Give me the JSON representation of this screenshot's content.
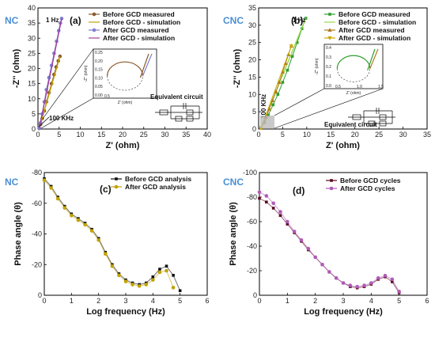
{
  "chart_data": [
    {
      "type": "scatter",
      "panel": "(a)",
      "tag": "NC",
      "xlabel": "Z' (ohm)",
      "ylabel": "-Z'' (ohm)",
      "xlim": [
        0,
        40
      ],
      "ylim": [
        0,
        40
      ],
      "xticks": [
        0,
        5,
        10,
        15,
        20,
        25,
        30,
        35,
        40
      ],
      "yticks": [
        0,
        5,
        10,
        15,
        20,
        25,
        30,
        35,
        40
      ],
      "legend_position": "top-right",
      "annotations": [
        "1 Hz",
        "100 KHz"
      ],
      "inset": {
        "xlabel": "Z' (ohm)",
        "ylabel": "-Z'' (ohm)",
        "xtick": "0.5",
        "yticks": [
          "0.25",
          "0.20",
          "0.15",
          "0.10",
          "0.05",
          "0.00"
        ]
      },
      "circuit_label": "Equivalent circuit",
      "series": [
        {
          "name": "Before GCD measured",
          "color": "#8b5a2b",
          "marker": "circle",
          "x": [
            0.3,
            0.6,
            1.0,
            1.5,
            2.0,
            2.6,
            3.2,
            3.8,
            4.3,
            4.8,
            5.2
          ],
          "y": [
            0.2,
            1.5,
            3.5,
            6.0,
            9.0,
            12.0,
            15.0,
            18.0,
            20.5,
            22.5,
            24.0
          ]
        },
        {
          "name": "Before GCD - simulation",
          "color": "#c2a300",
          "marker": "line",
          "x": [
            0.3,
            5.2
          ],
          "y": [
            0.2,
            24.0
          ]
        },
        {
          "name": "After GCD measured",
          "color": "#7f7fd0",
          "marker": "circle",
          "x": [
            0.3,
            0.6,
            1.0,
            1.5,
            2.0,
            2.6,
            3.2,
            3.8,
            4.4,
            4.9,
            5.3,
            5.6
          ],
          "y": [
            0.3,
            2.0,
            5.0,
            9.0,
            13.0,
            17.0,
            21.0,
            25.0,
            29.0,
            32.5,
            35.0,
            36.5
          ]
        },
        {
          "name": "After GCD - simulation",
          "color": "#a040a0",
          "marker": "line",
          "x": [
            0.3,
            5.6
          ],
          "y": [
            0.3,
            36.5
          ]
        }
      ]
    },
    {
      "type": "scatter",
      "panel": "(b)",
      "tag": "CNC",
      "xlabel": "Z' (ohm)",
      "ylabel": "-Z'' (ohm)",
      "xlim": [
        0,
        35
      ],
      "ylim": [
        0,
        35
      ],
      "xticks": [
        0,
        5,
        10,
        15,
        20,
        25,
        30,
        35
      ],
      "yticks": [
        0,
        5,
        10,
        15,
        20,
        25,
        30,
        35
      ],
      "legend_position": "top-right",
      "annotations": [
        "1 Hz",
        "100 KHz"
      ],
      "inset": {
        "xlabel": "Z' (ohm)",
        "ylabel": "-Z'' (ohm)",
        "xticks": [
          "0.5",
          "1.0",
          "1.5"
        ],
        "yticks": [
          "0.4",
          "0.3",
          "0.2",
          "0.1",
          "0.0"
        ]
      },
      "circuit_label": "Equivalent circuit",
      "series": [
        {
          "name": "Before GCD measured",
          "color": "#2e9e2e",
          "marker": "square",
          "x": [
            0.5,
            1.2,
            2.0,
            3.0,
            4.0,
            5.0,
            6.0,
            7.0,
            8.0,
            9.0,
            9.8
          ],
          "y": [
            0.3,
            2.0,
            4.0,
            7.0,
            10.0,
            13.5,
            17.0,
            21.0,
            25.0,
            29.0,
            32.0
          ]
        },
        {
          "name": "Before GCD - simulation",
          "color": "#9ad84a",
          "marker": "line",
          "x": [
            0.5,
            9.8
          ],
          "y": [
            0.3,
            32.0
          ]
        },
        {
          "name": "After GCD measured",
          "color": "#b07a20",
          "marker": "triangle-up",
          "x": [
            0.5,
            1.0,
            1.6,
            2.2,
            2.9,
            3.6,
            4.3,
            5.0,
            5.6,
            6.2,
            6.8
          ],
          "y": [
            0.3,
            1.8,
            3.5,
            5.8,
            8.2,
            10.8,
            13.5,
            16.5,
            19.0,
            21.5,
            24.0
          ]
        },
        {
          "name": "After GCD - simulation",
          "color": "#c9a800",
          "marker": "triangle-down",
          "x": [
            0.5,
            6.8
          ],
          "y": [
            0.3,
            24.0
          ]
        }
      ]
    },
    {
      "type": "scatter",
      "panel": "(c)",
      "tag": "NC",
      "xlabel": "Log frequency (Hz)",
      "ylabel": "Phase angle (θ)",
      "xlim": [
        0,
        6
      ],
      "ylim": [
        0,
        -80
      ],
      "xticks": [
        0,
        1,
        2,
        3,
        4,
        5,
        6
      ],
      "yticks": [
        0,
        -20,
        -40,
        -60,
        -80
      ],
      "legend_position": "top-right",
      "series": [
        {
          "name": "Before GCD analysis",
          "color": "#111111",
          "marker": "square",
          "x": [
            0,
            0.25,
            0.5,
            0.75,
            1.0,
            1.25,
            1.5,
            1.75,
            2.0,
            2.25,
            2.5,
            2.75,
            3.0,
            3.25,
            3.5,
            3.75,
            4.0,
            4.25,
            4.5,
            4.75,
            5.0
          ],
          "y": [
            -76,
            -71,
            -64,
            -58,
            -53,
            -50,
            -47,
            -43,
            -37,
            -28,
            -20,
            -14,
            -10,
            -8,
            -7,
            -8,
            -12,
            -17,
            -19,
            -13,
            -3
          ]
        },
        {
          "name": "After GCD analysis",
          "color": "#c2a300",
          "marker": "circle",
          "x": [
            0,
            0.25,
            0.5,
            0.75,
            1.0,
            1.25,
            1.5,
            1.75,
            2.0,
            2.25,
            2.5,
            2.75,
            3.0,
            3.25,
            3.5,
            3.75,
            4.0,
            4.25,
            4.5,
            4.75
          ],
          "y": [
            -75,
            -70,
            -63,
            -57,
            -52,
            -49,
            -46,
            -42,
            -36,
            -27,
            -19,
            -13,
            -9,
            -7,
            -6,
            -7,
            -10,
            -15,
            -16,
            -5
          ]
        }
      ]
    },
    {
      "type": "scatter",
      "panel": "(d)",
      "tag": "CNC",
      "xlabel": "Log frequency (Hz)",
      "ylabel": "Phase angle (θ)",
      "xlim": [
        0,
        6
      ],
      "ylim": [
        0,
        -100
      ],
      "xticks": [
        0,
        1,
        2,
        3,
        4,
        5,
        6
      ],
      "yticks": [
        0,
        -20,
        -40,
        -60,
        -80,
        -100
      ],
      "legend_position": "top-right",
      "series": [
        {
          "name": "Before GCD cycles",
          "color": "#5a0a20",
          "marker": "square",
          "x": [
            0,
            0.25,
            0.5,
            0.75,
            1.0,
            1.25,
            1.5,
            1.75,
            2.0,
            2.25,
            2.5,
            2.75,
            3.0,
            3.25,
            3.5,
            3.75,
            4.0,
            4.25,
            4.5,
            4.75,
            5.0
          ],
          "y": [
            -79,
            -76,
            -71,
            -65,
            -58,
            -51,
            -44,
            -37,
            -31,
            -25,
            -19,
            -14,
            -10,
            -7,
            -6,
            -7,
            -9,
            -13,
            -15,
            -11,
            -2
          ]
        },
        {
          "name": "After GCD cycles",
          "color": "#b05ab8",
          "marker": "circle",
          "x": [
            0,
            0.25,
            0.5,
            0.75,
            1.0,
            1.25,
            1.5,
            1.75,
            2.0,
            2.25,
            2.5,
            2.75,
            3.0,
            3.25,
            3.5,
            3.75,
            4.0,
            4.25,
            4.5,
            4.75,
            5.0
          ],
          "y": [
            -84,
            -81,
            -75,
            -68,
            -60,
            -52,
            -45,
            -38,
            -31,
            -25,
            -19,
            -14,
            -10,
            -8,
            -7,
            -8,
            -10,
            -14,
            -16,
            -13,
            -3
          ]
        }
      ]
    }
  ]
}
